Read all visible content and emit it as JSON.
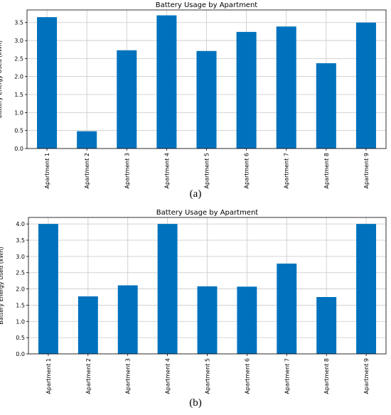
{
  "captions": [
    "(a)",
    "(b)"
  ],
  "chart_data": [
    {
      "type": "bar",
      "title": "Battery Usage by Apartment",
      "xlabel": "",
      "ylabel": "Battery Energy Used (kWh)",
      "categories": [
        "Apartment 1",
        "Apartment 2",
        "Apartment 3",
        "Apartment 4",
        "Apartment 5",
        "Apartment 6",
        "Apartment 7",
        "Apartment 8",
        "Apartment 9"
      ],
      "values": [
        3.65,
        0.48,
        2.73,
        3.7,
        2.71,
        3.24,
        3.39,
        2.37,
        3.5
      ],
      "ylim": [
        0,
        3.85
      ],
      "yticks": [
        "0.0",
        "0.5",
        "1.0",
        "1.5",
        "2.0",
        "2.5",
        "3.0",
        "3.5"
      ],
      "grid": true,
      "color": "#0072BD"
    },
    {
      "type": "bar",
      "title": "Battery Usage by Apartment",
      "xlabel": "",
      "ylabel": "Battery Energy Used (kWh)",
      "categories": [
        "Apartment 1",
        "Apartment 2",
        "Apartment 3",
        "Apartment 4",
        "Apartment 5",
        "Apartment 6",
        "Apartment 7",
        "Apartment 8",
        "Apartment 9"
      ],
      "values": [
        4.0,
        1.77,
        2.11,
        4.0,
        2.08,
        2.07,
        2.78,
        1.75,
        4.0
      ],
      "ylim": [
        0,
        4.2
      ],
      "yticks": [
        "0.0",
        "0.5",
        "1.0",
        "1.5",
        "2.0",
        "2.5",
        "3.0",
        "3.5",
        "4.0"
      ],
      "grid": true,
      "color": "#0072BD"
    }
  ]
}
